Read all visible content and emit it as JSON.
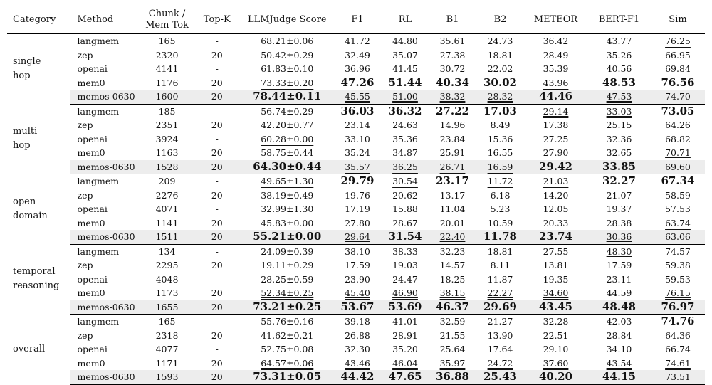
{
  "headers": {
    "category": "Category",
    "method": "Method",
    "chunk": "Chunk /",
    "mem_tok": "Mem Tok",
    "topk": "Top-K",
    "llm": "LLMJudge Score",
    "f1": "F1",
    "rl": "RL",
    "b1": "B1",
    "b2": "B2",
    "meteor": "METEOR",
    "bert": "BERT-F1",
    "sim": "Sim"
  },
  "groups": [
    {
      "category": [
        "single",
        "hop"
      ],
      "rows": [
        {
          "method": "langmem",
          "chunk": "165",
          "topk": "-",
          "llm": "68.21±0.06",
          "f1": "41.72",
          "rl": "44.80",
          "b1": "35.61",
          "b2": "24.73",
          "meteor": "36.42",
          "bert": "43.77",
          "sim": "76.25"
        },
        {
          "method": "zep",
          "chunk": "2320",
          "topk": "20",
          "llm": "50.42±0.29",
          "f1": "32.49",
          "rl": "35.07",
          "b1": "27.38",
          "b2": "18.81",
          "meteor": "28.49",
          "bert": "35.26",
          "sim": "66.95"
        },
        {
          "method": "openai",
          "chunk": "4141",
          "topk": "-",
          "llm": "61.83±0.10",
          "f1": "36.96",
          "rl": "41.45",
          "b1": "30.72",
          "b2": "22.02",
          "meteor": "35.39",
          "bert": "40.56",
          "sim": "69.84"
        },
        {
          "method": "mem0",
          "chunk": "1176",
          "topk": "20",
          "llm": "73.33±0.20",
          "f1": "47.26",
          "rl": "51.44",
          "b1": "40.34",
          "b2": "30.02",
          "meteor": "43.96",
          "bert": "48.53",
          "sim": "76.56"
        },
        {
          "method": "memos-0630",
          "chunk": "1600",
          "topk": "20",
          "llm": "78.44±0.11",
          "f1": "45.55",
          "rl": "51.00",
          "b1": "38.32",
          "b2": "28.32",
          "meteor": "44.46",
          "bert": "47.53",
          "sim": "74.70"
        }
      ]
    },
    {
      "category": [
        "multi",
        "hop"
      ],
      "rows": [
        {
          "method": "langmem",
          "chunk": "185",
          "topk": "-",
          "llm": "56.74±0.29",
          "f1": "36.03",
          "rl": "36.32",
          "b1": "27.22",
          "b2": "17.03",
          "meteor": "29.14",
          "bert": "33.03",
          "sim": "73.05"
        },
        {
          "method": "zep",
          "chunk": "2351",
          "topk": "20",
          "llm": "42.20±0.77",
          "f1": "23.14",
          "rl": "24.63",
          "b1": "14.96",
          "b2": "8.49",
          "meteor": "17.38",
          "bert": "25.15",
          "sim": "64.26"
        },
        {
          "method": "openai",
          "chunk": "3924",
          "topk": "-",
          "llm": "60.28±0.00",
          "f1": "33.10",
          "rl": "35.36",
          "b1": "23.84",
          "b2": "15.36",
          "meteor": "27.25",
          "bert": "32.36",
          "sim": "68.82"
        },
        {
          "method": "mem0",
          "chunk": "1163",
          "topk": "20",
          "llm": "58.75±0.44",
          "f1": "35.24",
          "rl": "34.87",
          "b1": "25.91",
          "b2": "16.55",
          "meteor": "27.90",
          "bert": "32.65",
          "sim": "70.71"
        },
        {
          "method": "memos-0630",
          "chunk": "1528",
          "topk": "20",
          "llm": "64.30±0.44",
          "f1": "35.57",
          "rl": "36.25",
          "b1": "26.71",
          "b2": "16.59",
          "meteor": "29.42",
          "bert": "33.85",
          "sim": "69.60"
        }
      ]
    },
    {
      "category": [
        "open",
        "domain"
      ],
      "rows": [
        {
          "method": "langmem",
          "chunk": "209",
          "topk": "-",
          "llm": "49.65±1.30",
          "f1": "29.79",
          "rl": "30.54",
          "b1": "23.17",
          "b2": "11.72",
          "meteor": "21.03",
          "bert": "32.27",
          "sim": "67.34"
        },
        {
          "method": "zep",
          "chunk": "2276",
          "topk": "20",
          "llm": "38.19±0.49",
          "f1": "19.76",
          "rl": "20.62",
          "b1": "13.17",
          "b2": "6.18",
          "meteor": "14.20",
          "bert": "21.07",
          "sim": "58.59"
        },
        {
          "method": "openai",
          "chunk": "4071",
          "topk": "-",
          "llm": "32.99±1.30",
          "f1": "17.19",
          "rl": "15.88",
          "b1": "11.04",
          "b2": "5.23",
          "meteor": "12.05",
          "bert": "19.37",
          "sim": "57.53"
        },
        {
          "method": "mem0",
          "chunk": "1141",
          "topk": "20",
          "llm": "45.83±0.00",
          "f1": "27.80",
          "rl": "28.67",
          "b1": "20.01",
          "b2": "10.59",
          "meteor": "20.33",
          "bert": "28.38",
          "sim": "63.74"
        },
        {
          "method": "memos-0630",
          "chunk": "1511",
          "topk": "20",
          "llm": "55.21±0.00",
          "f1": "29.64",
          "rl": "31.54",
          "b1": "22.40",
          "b2": "11.78",
          "meteor": "23.74",
          "bert": "30.36",
          "sim": "63.06"
        }
      ]
    },
    {
      "category": [
        "temporal",
        "reasoning"
      ],
      "rows": [
        {
          "method": "langmem",
          "chunk": "134",
          "topk": "-",
          "llm": "24.09±0.39",
          "f1": "38.10",
          "rl": "38.33",
          "b1": "32.23",
          "b2": "18.81",
          "meteor": "27.55",
          "bert": "48.30",
          "sim": "74.57"
        },
        {
          "method": "zep",
          "chunk": "2295",
          "topk": "20",
          "llm": "19.11±0.29",
          "f1": "17.59",
          "rl": "19.03",
          "b1": "14.57",
          "b2": "8.11",
          "meteor": "13.81",
          "bert": "17.59",
          "sim": "59.38"
        },
        {
          "method": "openai",
          "chunk": "4048",
          "topk": "-",
          "llm": "28.25±0.59",
          "f1": "23.90",
          "rl": "24.47",
          "b1": "18.25",
          "b2": "11.87",
          "meteor": "19.35",
          "bert": "23.11",
          "sim": "59.53"
        },
        {
          "method": "mem0",
          "chunk": "1173",
          "topk": "20",
          "llm": "52.34±0.25",
          "f1": "45.40",
          "rl": "46.90",
          "b1": "38.15",
          "b2": "22.27",
          "meteor": "34.60",
          "bert": "44.59",
          "sim": "76.15"
        },
        {
          "method": "memos-0630",
          "chunk": "1655",
          "topk": "20",
          "llm": "73.21±0.25",
          "f1": "53.67",
          "rl": "53.69",
          "b1": "46.37",
          "b2": "29.69",
          "meteor": "43.45",
          "bert": "48.48",
          "sim": "76.97"
        }
      ]
    },
    {
      "category": [
        "overall"
      ],
      "rows": [
        {
          "method": "langmem",
          "chunk": "165",
          "topk": "-",
          "llm": "55.76±0.16",
          "f1": "39.18",
          "rl": "41.01",
          "b1": "32.59",
          "b2": "21.27",
          "meteor": "32.28",
          "bert": "42.03",
          "sim": "74.76"
        },
        {
          "method": "zep",
          "chunk": "2318",
          "topk": "20",
          "llm": "41.62±0.21",
          "f1": "26.88",
          "rl": "28.91",
          "b1": "21.55",
          "b2": "13.90",
          "meteor": "22.51",
          "bert": "28.84",
          "sim": "64.36"
        },
        {
          "method": "openai",
          "chunk": "4077",
          "topk": "-",
          "llm": "52.75±0.08",
          "f1": "32.30",
          "rl": "35.20",
          "b1": "25.64",
          "b2": "17.64",
          "meteor": "29.10",
          "bert": "34.10",
          "sim": "66.74"
        },
        {
          "method": "mem0",
          "chunk": "1171",
          "topk": "20",
          "llm": "64.57±0.06",
          "f1": "43.46",
          "rl": "46.04",
          "b1": "35.97",
          "b2": "24.72",
          "meteor": "37.60",
          "bert": "43.54",
          "sim": "74.61"
        },
        {
          "method": "memos-0630",
          "chunk": "1593",
          "topk": "20",
          "llm": "73.31±0.05",
          "f1": "44.42",
          "rl": "47.65",
          "b1": "36.88",
          "b2": "25.43",
          "meteor": "40.20",
          "bert": "44.15",
          "sim": "73.51"
        }
      ]
    }
  ],
  "best_cells": [
    "0.4.llm",
    "0.3.f1",
    "0.3.rl",
    "0.3.b1",
    "0.3.b2",
    "0.4.meteor",
    "0.3.bert",
    "0.3.sim",
    "1.4.llm",
    "1.0.f1",
    "1.0.rl",
    "1.0.b1",
    "1.0.b2",
    "1.4.meteor",
    "1.4.bert",
    "1.0.sim",
    "2.4.llm",
    "2.0.f1",
    "2.4.rl",
    "2.0.b1",
    "2.4.b2",
    "2.4.meteor",
    "2.0.bert",
    "2.0.sim",
    "3.4.llm",
    "3.4.f1",
    "3.4.rl",
    "3.4.b1",
    "3.4.b2",
    "3.4.meteor",
    "3.4.bert",
    "3.4.sim",
    "4.4.llm",
    "4.4.f1",
    "4.4.rl",
    "4.4.b1",
    "4.4.b2",
    "4.4.meteor",
    "4.4.bert",
    "4.0.sim"
  ],
  "second_cells": [
    "0.3.llm",
    "0.4.f1",
    "0.4.rl",
    "0.4.b1",
    "0.4.b2",
    "0.3.meteor",
    "0.4.bert",
    "0.0.sim",
    "1.2.llm",
    "1.4.f1",
    "1.4.rl",
    "1.4.b1",
    "1.4.b2",
    "1.0.meteor",
    "1.0.bert",
    "1.3.sim",
    "2.0.llm",
    "2.4.f1",
    "2.0.rl",
    "2.4.b1",
    "2.0.b2",
    "2.0.meteor",
    "2.4.bert",
    "2.3.sim",
    "3.3.llm",
    "3.3.f1",
    "3.3.rl",
    "3.3.b1",
    "3.3.b2",
    "3.3.meteor",
    "3.0.bert",
    "3.3.sim",
    "4.3.llm",
    "4.3.f1",
    "4.3.rl",
    "4.3.b1",
    "4.3.b2",
    "4.3.meteor",
    "4.3.bert",
    "4.3.sim"
  ]
}
